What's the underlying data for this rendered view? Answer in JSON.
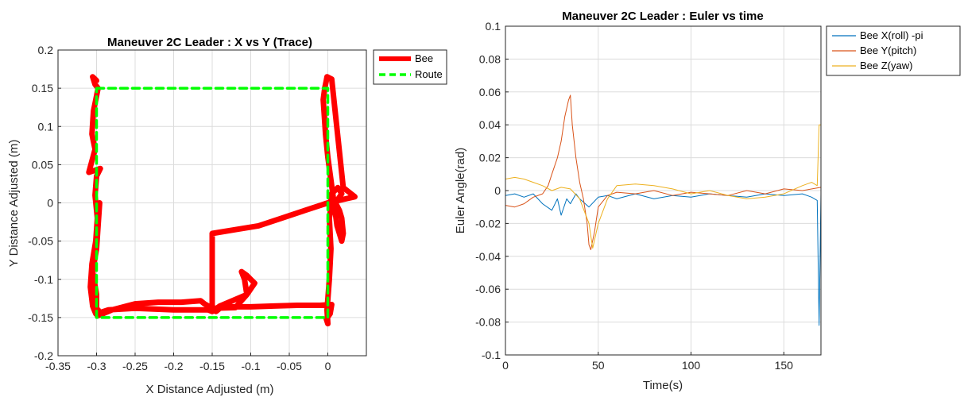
{
  "chart_data": [
    {
      "type": "line",
      "title": "Maneuver 2C Leader : X vs Y (Trace)",
      "xlabel": "X Distance Adjusted (m)",
      "ylabel": "Y Distance Adjusted (m)",
      "xlim": [
        -0.35,
        0.05
      ],
      "ylim": [
        -0.2,
        0.2
      ],
      "xticks": [
        -0.35,
        -0.3,
        -0.25,
        -0.2,
        -0.15,
        -0.1,
        -0.05,
        0
      ],
      "xtick_labels": [
        "-0.35",
        "-0.3",
        "-0.25",
        "-0.2",
        "-0.15",
        "-0.1",
        "-0.05",
        "0"
      ],
      "yticks": [
        -0.2,
        -0.15,
        -0.1,
        -0.05,
        0,
        0.05,
        0.1,
        0.15,
        0.2
      ],
      "ytick_labels": [
        "-0.2",
        "-0.15",
        "-0.1",
        "-0.05",
        "0",
        "0.05",
        "0.1",
        "0.15",
        "0.2"
      ],
      "grid": true,
      "legend": "top-right-outside",
      "series": [
        {
          "name": "Bee",
          "color": "#ff0000",
          "style": "solid",
          "x": [
            -0.3,
            -0.305,
            -0.302,
            -0.298,
            -0.3,
            -0.304,
            -0.306,
            -0.302,
            -0.31,
            -0.295,
            -0.3,
            -0.302,
            -0.299,
            -0.301,
            -0.306,
            -0.308,
            -0.305,
            -0.301,
            -0.298,
            -0.299,
            -0.28,
            -0.25,
            -0.22,
            -0.19,
            -0.165,
            -0.16,
            -0.155,
            -0.15,
            -0.145,
            -0.14,
            -0.13,
            -0.1,
            -0.07,
            -0.04,
            -0.01,
            0.005,
            0.003,
            -0.002,
            0.0,
            -0.001,
            0.002,
            0.004,
            0.002,
            0.005,
            0.003,
            0.013,
            0.018,
            0.01,
            0.015,
            0.018,
            0.02,
            0.018,
            0.012,
            0.008,
            0.004,
            0.0,
            -0.003,
            -0.005,
            -0.006,
            -0.004,
            -0.002,
            -0.001,
            0.005,
            0.02,
            0.035,
            0.0,
            -0.03,
            -0.06,
            -0.09,
            -0.12,
            -0.15,
            -0.15,
            -0.12,
            -0.105,
            -0.108,
            -0.112,
            -0.105,
            -0.1,
            -0.095,
            -0.105,
            -0.14,
            -0.15,
            -0.155,
            -0.2,
            -0.25,
            -0.285,
            -0.3,
            -0.3,
            -0.305,
            -0.3,
            -0.298,
            -0.296
          ],
          "y": [
            0.16,
            0.165,
            0.155,
            0.15,
            0.14,
            0.12,
            0.09,
            0.07,
            0.04,
            0.045,
            0.035,
            0.01,
            -0.02,
            -0.05,
            -0.08,
            -0.11,
            -0.135,
            -0.145,
            -0.14,
            -0.148,
            -0.14,
            -0.132,
            -0.13,
            -0.13,
            -0.128,
            -0.132,
            -0.135,
            -0.14,
            -0.142,
            -0.138,
            -0.136,
            -0.136,
            -0.135,
            -0.134,
            -0.134,
            -0.133,
            -0.145,
            -0.152,
            -0.158,
            -0.14,
            -0.1,
            -0.06,
            -0.02,
            0.0,
            0.01,
            0.02,
            0.012,
            0.0,
            -0.01,
            -0.02,
            -0.04,
            -0.05,
            -0.03,
            0.0,
            0.03,
            0.06,
            0.09,
            0.12,
            0.135,
            0.15,
            0.16,
            0.165,
            0.162,
            0.02,
            0.008,
            0.0,
            -0.01,
            -0.02,
            -0.03,
            -0.035,
            -0.04,
            -0.138,
            -0.137,
            -0.12,
            -0.1,
            -0.09,
            -0.095,
            -0.1,
            -0.105,
            -0.12,
            -0.135,
            -0.142,
            -0.14,
            -0.14,
            -0.138,
            -0.14,
            -0.145,
            -0.12,
            -0.09,
            -0.06,
            -0.03,
            0.0
          ]
        },
        {
          "name": "Route",
          "color": "#00ff00",
          "style": "dashed",
          "x": [
            -0.3,
            0.0,
            0.0,
            -0.3,
            -0.3
          ],
          "y": [
            0.15,
            0.15,
            -0.15,
            -0.15,
            0.15
          ]
        }
      ]
    },
    {
      "type": "line",
      "title": "Maneuver 2C Leader : Euler vs time",
      "xlabel": "Time(s)",
      "ylabel": "Euler Angle(rad)",
      "xlim": [
        0,
        170
      ],
      "ylim": [
        -0.1,
        0.1
      ],
      "xticks": [
        0,
        50,
        100,
        150
      ],
      "xtick_labels": [
        "0",
        "50",
        "100",
        "150"
      ],
      "yticks": [
        -0.1,
        -0.08,
        -0.06,
        -0.04,
        -0.02,
        0,
        0.02,
        0.04,
        0.06,
        0.08,
        0.1
      ],
      "ytick_labels": [
        "-0.1",
        "-0.08",
        "-0.06",
        "-0.04",
        "-0.02",
        "0",
        "0.02",
        "0.04",
        "0.06",
        "0.08",
        "0.1"
      ],
      "grid": true,
      "legend": "top-right-outside",
      "series": [
        {
          "name": "Bee X(roll) -pi",
          "color": "#0072bd",
          "x": [
            0,
            5,
            10,
            15,
            20,
            25,
            28,
            30,
            33,
            35,
            38,
            40,
            45,
            50,
            55,
            60,
            70,
            80,
            90,
            100,
            110,
            120,
            130,
            140,
            150,
            160,
            165,
            168,
            169,
            170
          ],
          "y": [
            -0.003,
            -0.002,
            -0.004,
            -0.002,
            -0.008,
            -0.012,
            -0.005,
            -0.015,
            -0.005,
            -0.008,
            -0.002,
            -0.005,
            -0.01,
            -0.004,
            -0.003,
            -0.005,
            -0.002,
            -0.005,
            -0.003,
            -0.004,
            -0.002,
            -0.003,
            -0.004,
            -0.002,
            -0.003,
            -0.002,
            -0.004,
            -0.006,
            -0.082,
            -0.002
          ]
        },
        {
          "name": "Bee Y(pitch)",
          "color": "#d95319",
          "x": [
            0,
            5,
            10,
            15,
            20,
            23,
            25,
            28,
            30,
            32,
            34,
            35,
            36,
            38,
            40,
            42,
            44,
            45,
            46,
            48,
            50,
            55,
            60,
            70,
            80,
            90,
            100,
            110,
            120,
            130,
            140,
            150,
            160,
            170
          ],
          "y": [
            -0.009,
            -0.01,
            -0.008,
            -0.004,
            -0.002,
            0.003,
            0.01,
            0.02,
            0.03,
            0.045,
            0.055,
            0.058,
            0.04,
            0.02,
            0.005,
            -0.005,
            -0.02,
            -0.033,
            -0.036,
            -0.025,
            -0.01,
            -0.003,
            -0.001,
            -0.002,
            0.0,
            -0.003,
            -0.001,
            -0.002,
            -0.003,
            0.0,
            -0.002,
            0.001,
            0.0,
            0.002
          ]
        },
        {
          "name": "Bee Z(yaw)",
          "color": "#edb120",
          "x": [
            0,
            5,
            10,
            15,
            20,
            25,
            30,
            35,
            40,
            45,
            47,
            50,
            55,
            60,
            70,
            80,
            90,
            100,
            110,
            120,
            130,
            140,
            150,
            160,
            165,
            168,
            169,
            170
          ],
          "y": [
            0.007,
            0.008,
            0.007,
            0.005,
            0.003,
            0.0,
            0.002,
            0.001,
            -0.005,
            -0.02,
            -0.035,
            -0.02,
            -0.005,
            0.003,
            0.004,
            0.003,
            0.001,
            -0.002,
            0.0,
            -0.003,
            -0.005,
            -0.004,
            -0.002,
            0.003,
            0.005,
            0.003,
            0.04,
            0.04
          ]
        }
      ]
    }
  ]
}
